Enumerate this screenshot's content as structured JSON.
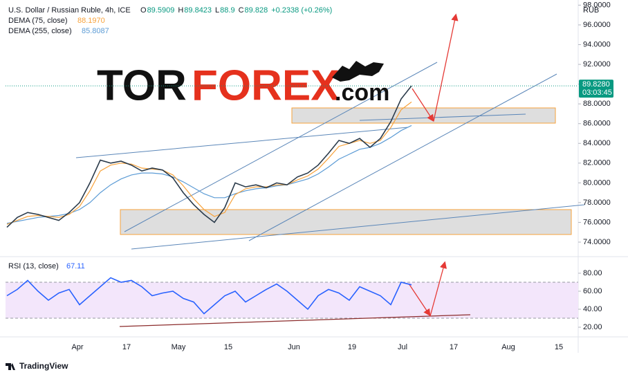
{
  "chart_data": [
    {
      "type": "line",
      "title": "U.S. Dollar / Russian Ruble, 4h, ICE",
      "ohlc": [
        {
          "label": "O",
          "value": 89.5909
        },
        {
          "label": "H",
          "value": 89.8423
        },
        {
          "label": "L",
          "value": 88.9
        },
        {
          "label": "C",
          "value": 89.828
        }
      ],
      "change": "+0.2338 (+0.26%)",
      "currency": "RUB",
      "last_price": {
        "value": 89.828,
        "label": "89.8280"
      },
      "countdown": "03:03:45",
      "watermark": [
        "TOR",
        "FOREX",
        ".com"
      ],
      "xtick_labels": [
        "Apr",
        "17",
        "May",
        "15",
        "Jun",
        "19",
        "Jul",
        "17",
        "Aug",
        "15"
      ],
      "ylim": [
        72.6,
        98.52
      ],
      "yticks": [
        {
          "value": 74,
          "label": "74.0000"
        },
        {
          "value": 76,
          "label": "76.0000"
        },
        {
          "value": 78,
          "label": "78.0000"
        },
        {
          "value": 80,
          "label": "80.0000"
        },
        {
          "value": 82,
          "label": "82.0000"
        },
        {
          "value": 84,
          "label": "84.0000"
        },
        {
          "value": 86,
          "label": "86.0000"
        },
        {
          "value": 88,
          "label": "88.0000"
        },
        {
          "value": 90,
          "label": "90.0000"
        },
        {
          "value": 92,
          "label": "92.0000"
        },
        {
          "value": 94,
          "label": "94.0000"
        },
        {
          "value": 96,
          "label": "96.0000"
        },
        {
          "value": 98,
          "label": "98.0000"
        }
      ],
      "series": [
        {
          "name": "USD/RUB",
          "color": "#2a3a4a",
          "values": [
            75.5,
            76.5,
            77,
            76.8,
            76.5,
            76.2,
            77,
            78,
            80,
            82.3,
            82,
            82.2,
            81.8,
            81.2,
            81.5,
            81.3,
            80.5,
            79,
            77.8,
            76.8,
            76,
            77.5,
            80,
            79.6,
            79.8,
            79.5,
            80,
            79.8,
            80.6,
            81,
            81.8,
            83,
            84.3,
            84,
            84.5,
            83.6,
            84.5,
            86.2,
            88.5,
            89.828
          ]
        },
        {
          "name": "DEMA (75, close)",
          "color": "#f7a23b",
          "last": {
            "value": 88.197,
            "label": "88.1970"
          },
          "values": [
            75.8,
            76.2,
            76.6,
            76.7,
            76.6,
            76.5,
            76.8,
            77.6,
            79.2,
            81.2,
            81.8,
            82,
            81.9,
            81.5,
            81.4,
            81.3,
            80.8,
            79.7,
            78.4,
            77.3,
            76.6,
            77,
            78.8,
            79.4,
            79.6,
            79.6,
            79.8,
            79.8,
            80.3,
            80.7,
            81.4,
            82.5,
            83.7,
            84,
            84.3,
            84,
            84.3,
            85.6,
            87.4,
            88.197
          ]
        },
        {
          "name": "DEMA (255, close)",
          "color": "#5b9bd5",
          "last": {
            "value": 85.8087,
            "label": "85.8087"
          },
          "values": [
            75.9,
            76.1,
            76.3,
            76.5,
            76.6,
            76.7,
            76.9,
            77.3,
            78,
            79,
            79.8,
            80.4,
            80.8,
            81,
            81,
            80.9,
            80.6,
            80.1,
            79.5,
            78.9,
            78.5,
            78.5,
            78.9,
            79.2,
            79.4,
            79.5,
            79.7,
            79.8,
            80.1,
            80.4,
            80.9,
            81.6,
            82.4,
            82.9,
            83.4,
            83.6,
            84,
            84.6,
            85.3,
            85.8087
          ]
        }
      ]
    },
    {
      "type": "line",
      "title": "RSI (13, close)",
      "ylim": [
        10.8,
        96.9
      ],
      "yticks": [
        {
          "value": 20,
          "label": "20.00"
        },
        {
          "value": 40,
          "label": "40.00"
        },
        {
          "value": 60,
          "label": "60.00"
        },
        {
          "value": 80,
          "label": "80.00"
        }
      ],
      "bands": [
        30,
        70
      ],
      "series": [
        {
          "name": "RSI (13, close)",
          "color": "#2962ff",
          "last": {
            "value": 67.11,
            "label": "67.11"
          },
          "values": [
            55,
            62,
            72,
            60,
            50,
            58,
            62,
            45,
            55,
            65,
            75,
            70,
            72,
            65,
            55,
            58,
            60,
            52,
            48,
            35,
            45,
            55,
            60,
            48,
            55,
            62,
            68,
            60,
            50,
            40,
            55,
            62,
            58,
            50,
            65,
            60,
            55,
            45,
            70,
            67.11
          ]
        }
      ]
    }
  ],
  "footer": "TradingView"
}
